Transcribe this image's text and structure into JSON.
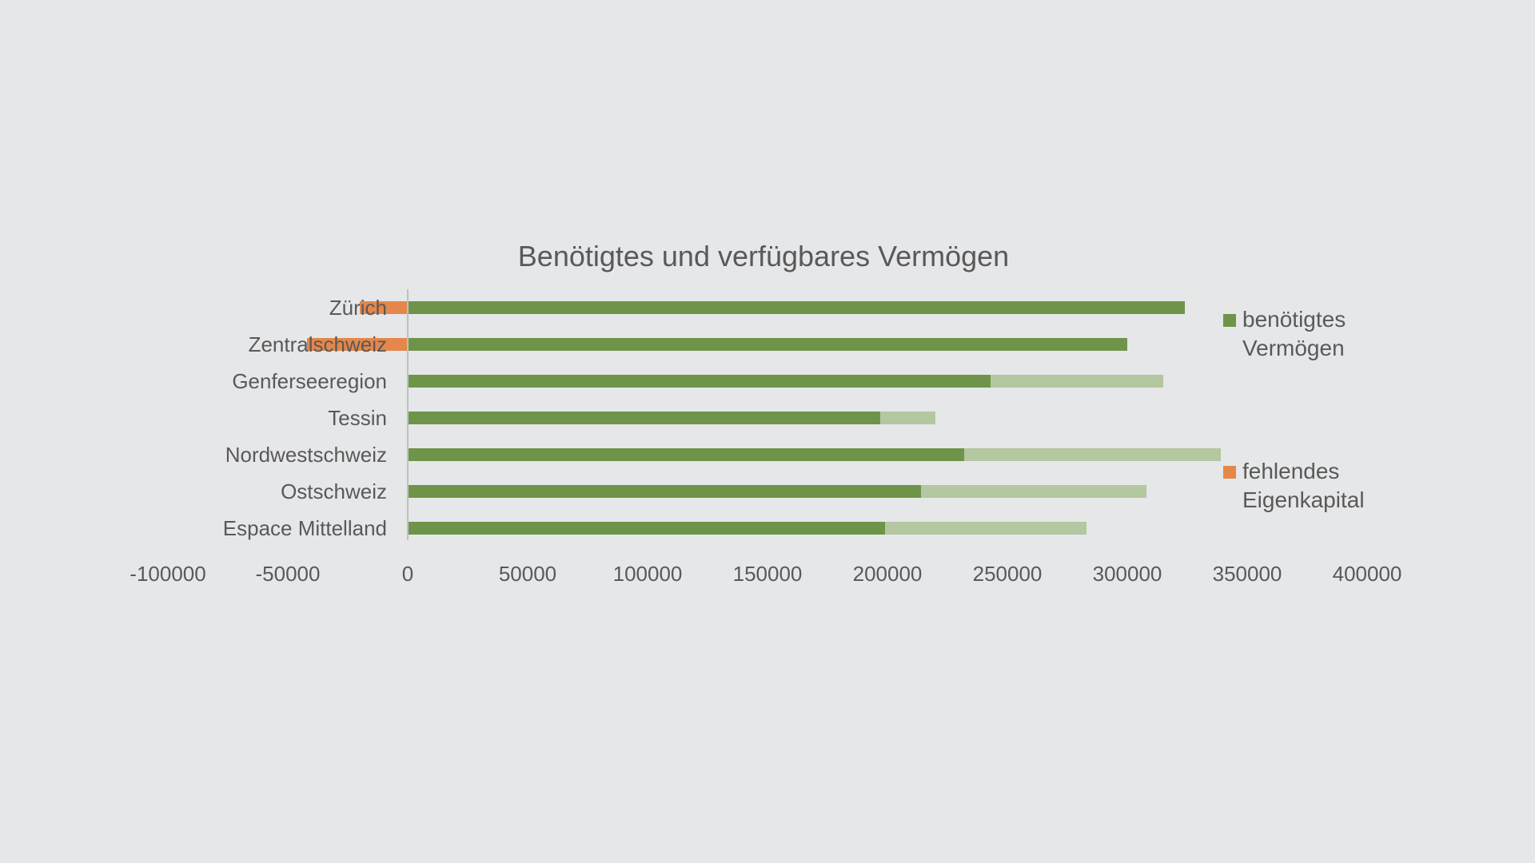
{
  "chart_data": {
    "type": "bar",
    "orientation": "horizontal",
    "stacked": true,
    "title": "Benötigtes und verfügbares Vermögen",
    "xlabel": "",
    "ylabel": "",
    "xlim": [
      -100000,
      400000
    ],
    "x_ticks": [
      "-100000",
      "-50000",
      "0",
      "50000",
      "100000",
      "150000",
      "200000",
      "250000",
      "300000",
      "350000",
      "400000"
    ],
    "grid": false,
    "legend_position": "right",
    "categories": [
      "Zürich",
      "Zentralschweiz",
      "Genferseeregion",
      "Tessin",
      "Nordwestschweiz",
      "Ostschweiz",
      "Espace Mittelland"
    ],
    "series": [
      {
        "name": "benötigtes Vermögen",
        "color": "#6e9449",
        "values": [
          324000,
          300000,
          243000,
          197000,
          232000,
          214000,
          199000
        ]
      },
      {
        "name": "",
        "color": "#b3c7a0",
        "values": [
          0,
          0,
          72000,
          23000,
          107000,
          94000,
          84000
        ]
      },
      {
        "name": "fehlendes Eigenkapital",
        "color": "#e5874a",
        "values": [
          -20000,
          -42000,
          0,
          0,
          0,
          0,
          0
        ]
      }
    ],
    "legend": [
      {
        "line1": "benötigtes",
        "line2": "Vermögen",
        "color": "#6e9449"
      },
      {
        "line1": "fehlendes",
        "line2": "Eigenkapital",
        "color": "#e5874a"
      }
    ]
  }
}
